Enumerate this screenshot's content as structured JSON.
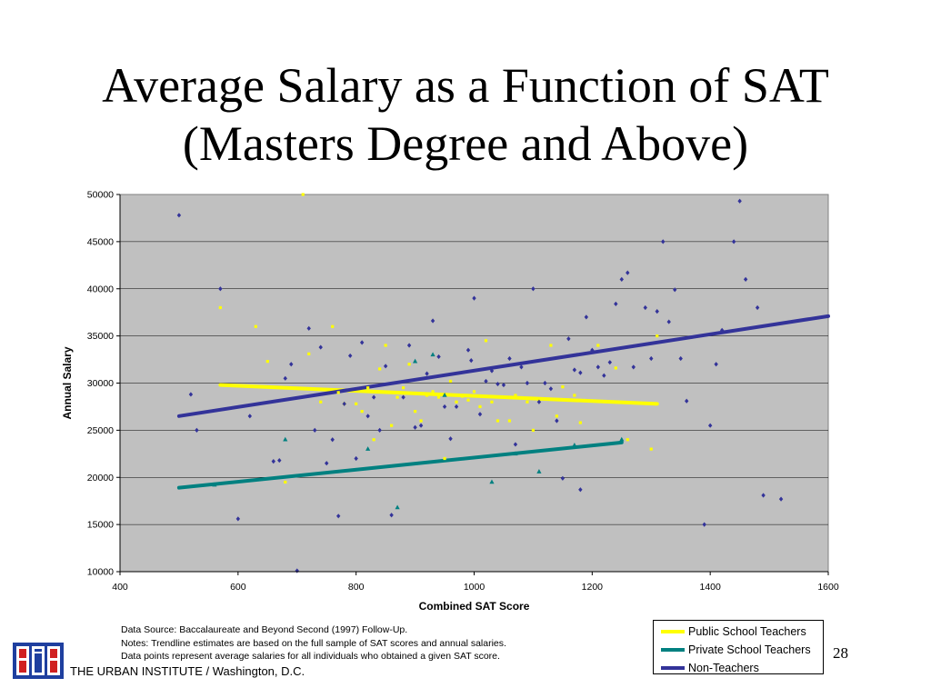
{
  "title_lines": [
    "Average Salary as a Function of SAT",
    "(Masters Degree and Above)"
  ],
  "chart_data": {
    "type": "scatter",
    "xlabel": "Combined SAT Score",
    "ylabel": "Annual Salary",
    "xlim": [
      400,
      1600
    ],
    "ylim": [
      10000,
      50000
    ],
    "x_ticks": [
      400,
      600,
      800,
      1000,
      1200,
      1400,
      1600
    ],
    "y_ticks": [
      10000,
      15000,
      20000,
      25000,
      30000,
      35000,
      40000,
      45000,
      50000
    ],
    "grid": "horizontal",
    "series": [
      {
        "name": "Public School Teachers",
        "color": "#ffff00",
        "marker": "square",
        "points": [
          [
            570,
            38000
          ],
          [
            630,
            36000
          ],
          [
            650,
            32300
          ],
          [
            680,
            19500
          ],
          [
            710,
            50000
          ],
          [
            720,
            33100
          ],
          [
            740,
            28000
          ],
          [
            760,
            36000
          ],
          [
            770,
            29000
          ],
          [
            780,
            27800
          ],
          [
            800,
            27800
          ],
          [
            810,
            27000
          ],
          [
            820,
            29500
          ],
          [
            830,
            24000
          ],
          [
            840,
            31500
          ],
          [
            850,
            34000
          ],
          [
            860,
            25500
          ],
          [
            870,
            28500
          ],
          [
            880,
            29500
          ],
          [
            890,
            32000
          ],
          [
            900,
            27000
          ],
          [
            910,
            26000
          ],
          [
            920,
            28700
          ],
          [
            930,
            29100
          ],
          [
            940,
            28500
          ],
          [
            950,
            22000
          ],
          [
            960,
            30200
          ],
          [
            970,
            28000
          ],
          [
            980,
            28600
          ],
          [
            990,
            28200
          ],
          [
            1000,
            29100
          ],
          [
            1010,
            27500
          ],
          [
            1020,
            34500
          ],
          [
            1030,
            28000
          ],
          [
            1040,
            26000
          ],
          [
            1060,
            26000
          ],
          [
            1070,
            28700
          ],
          [
            1090,
            28000
          ],
          [
            1100,
            25000
          ],
          [
            1110,
            28200
          ],
          [
            1130,
            34000
          ],
          [
            1140,
            26500
          ],
          [
            1150,
            29600
          ],
          [
            1170,
            28700
          ],
          [
            1180,
            25800
          ],
          [
            1210,
            34000
          ],
          [
            1240,
            31600
          ],
          [
            1260,
            24000
          ],
          [
            1300,
            23000
          ],
          [
            1310,
            35000
          ]
        ]
      },
      {
        "name": "Private School Teachers",
        "color": "#008080",
        "marker": "triangle",
        "points": [
          [
            560,
            19200
          ],
          [
            680,
            24000
          ],
          [
            820,
            23000
          ],
          [
            870,
            16800
          ],
          [
            900,
            32300
          ],
          [
            930,
            33000
          ],
          [
            950,
            28700
          ],
          [
            1030,
            19500
          ],
          [
            1070,
            22500
          ],
          [
            1110,
            20600
          ],
          [
            1170,
            23400
          ],
          [
            1250,
            24000
          ]
        ]
      },
      {
        "name": "Non-Teachers",
        "color": "#333399",
        "marker": "diamond",
        "points": [
          [
            500,
            47800
          ],
          [
            520,
            28800
          ],
          [
            530,
            25000
          ],
          [
            570,
            40000
          ],
          [
            600,
            15600
          ],
          [
            620,
            26500
          ],
          [
            660,
            21700
          ],
          [
            670,
            21800
          ],
          [
            680,
            30500
          ],
          [
            690,
            32000
          ],
          [
            700,
            10100
          ],
          [
            720,
            35800
          ],
          [
            730,
            25000
          ],
          [
            740,
            33800
          ],
          [
            750,
            21500
          ],
          [
            760,
            24000
          ],
          [
            770,
            15900
          ],
          [
            780,
            27800
          ],
          [
            790,
            32900
          ],
          [
            800,
            22000
          ],
          [
            810,
            34300
          ],
          [
            820,
            26500
          ],
          [
            830,
            28500
          ],
          [
            840,
            25000
          ],
          [
            850,
            31800
          ],
          [
            860,
            16000
          ],
          [
            880,
            28500
          ],
          [
            890,
            34000
          ],
          [
            900,
            25300
          ],
          [
            910,
            25500
          ],
          [
            920,
            31000
          ],
          [
            930,
            36600
          ],
          [
            940,
            32800
          ],
          [
            950,
            27500
          ],
          [
            960,
            24100
          ],
          [
            970,
            27500
          ],
          [
            990,
            33500
          ],
          [
            1000,
            39000
          ],
          [
            995,
            32400
          ],
          [
            1010,
            26700
          ],
          [
            1020,
            30200
          ],
          [
            1030,
            31300
          ],
          [
            1040,
            29900
          ],
          [
            1050,
            29800
          ],
          [
            1060,
            32600
          ],
          [
            1070,
            23500
          ],
          [
            1080,
            31700
          ],
          [
            1090,
            30000
          ],
          [
            1100,
            40000
          ],
          [
            1110,
            28000
          ],
          [
            1120,
            30000
          ],
          [
            1130,
            29400
          ],
          [
            1140,
            26000
          ],
          [
            1150,
            19900
          ],
          [
            1160,
            34700
          ],
          [
            1170,
            31400
          ],
          [
            1180,
            18700
          ],
          [
            1180,
            31100
          ],
          [
            1190,
            37000
          ],
          [
            1200,
            33500
          ],
          [
            1210,
            31700
          ],
          [
            1220,
            30800
          ],
          [
            1230,
            32200
          ],
          [
            1240,
            38400
          ],
          [
            1250,
            41000
          ],
          [
            1260,
            41700
          ],
          [
            1270,
            31700
          ],
          [
            1290,
            38000
          ],
          [
            1300,
            32600
          ],
          [
            1310,
            37600
          ],
          [
            1320,
            45000
          ],
          [
            1330,
            36500
          ],
          [
            1340,
            39900
          ],
          [
            1350,
            32600
          ],
          [
            1360,
            28100
          ],
          [
            1390,
            15000
          ],
          [
            1400,
            25500
          ],
          [
            1410,
            32000
          ],
          [
            1420,
            35600
          ],
          [
            1440,
            45000
          ],
          [
            1450,
            49300
          ],
          [
            1460,
            41000
          ],
          [
            1480,
            38000
          ],
          [
            1490,
            18100
          ],
          [
            1520,
            17700
          ]
        ]
      }
    ],
    "trendlines": [
      {
        "name": "Public School Teachers",
        "color": "#ffff00",
        "x": [
          570,
          1310
        ],
        "y": [
          29800,
          27800
        ]
      },
      {
        "name": "Private School Teachers",
        "color": "#008080",
        "x": [
          500,
          1250
        ],
        "y": [
          18900,
          23700
        ]
      },
      {
        "name": "Non-Teachers",
        "color": "#333399",
        "x": [
          500,
          1600
        ],
        "y": [
          26500,
          37100
        ]
      }
    ]
  },
  "notes": [
    "Data Source: Baccalaureate and Beyond Second (1997) Follow-Up.",
    "Notes:  Trendline estimates are based on the full sample of SAT scores and annual salaries.",
    "Data points represent average salaries for all individuals who obtained a given SAT score."
  ],
  "legend": [
    {
      "label": "Public School Teachers",
      "color": "#ffff00"
    },
    {
      "label": "Private School Teachers",
      "color": "#008080"
    },
    {
      "label": "Non-Teachers",
      "color": "#333399"
    }
  ],
  "page_number": "28",
  "footer_org": "THE URBAN INSTITUTE / Washington, D.C.",
  "colors": {
    "plot_background": "#c0c0c0",
    "gridline": "#000000"
  }
}
